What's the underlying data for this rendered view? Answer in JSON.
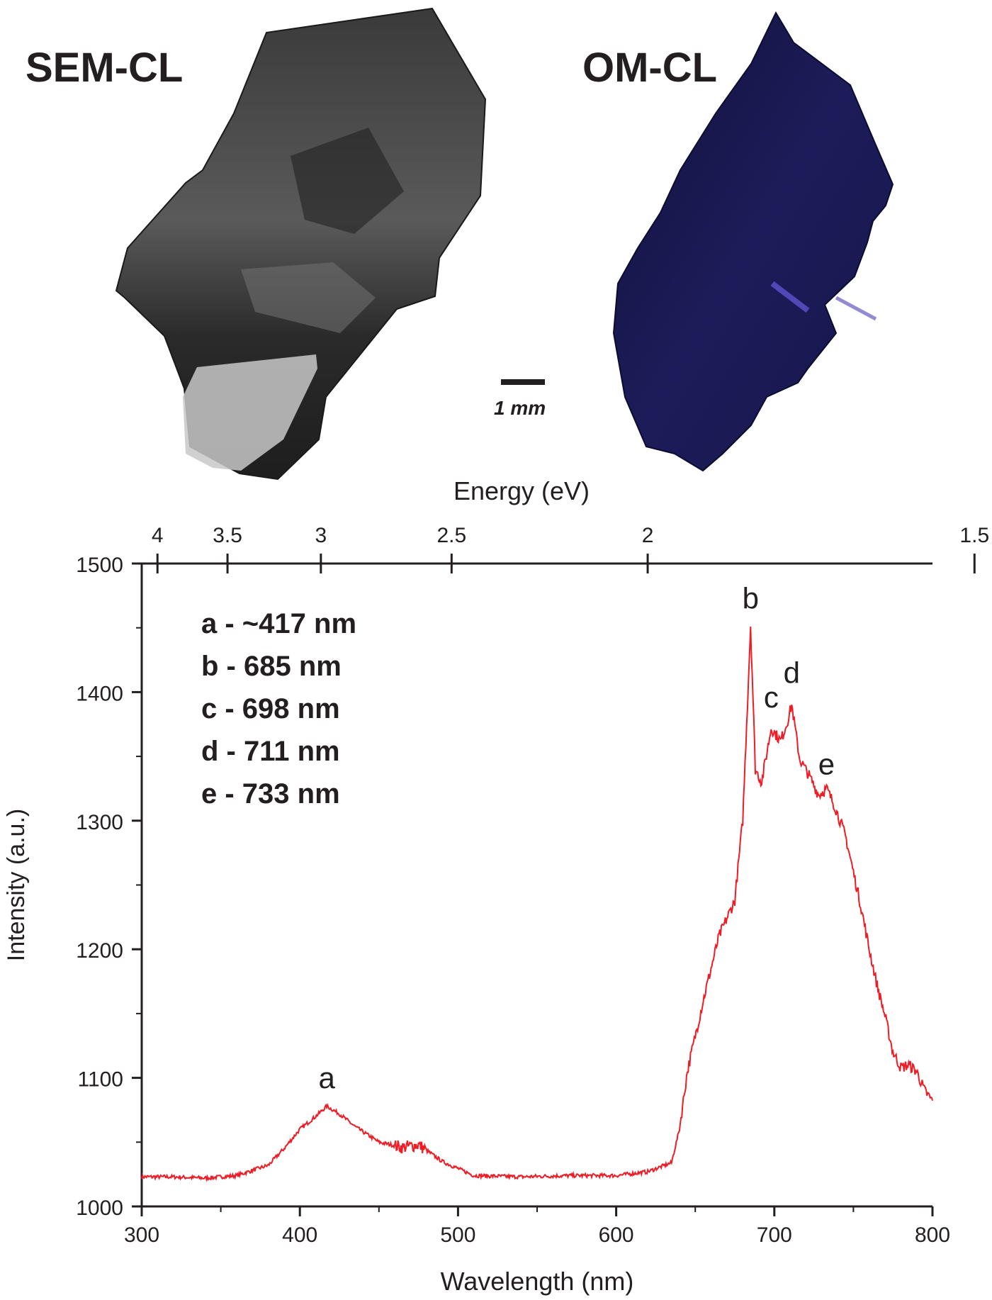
{
  "panels": {
    "left_title": "SEM-CL",
    "right_title": "OM-CL",
    "scale_label": "1 mm"
  },
  "chart_data": {
    "type": "line",
    "xlabel": "Wavelength (nm)",
    "ylabel": "Intensity (a.u.)",
    "top_axis_label": "Energy (eV)",
    "xlim": [
      300,
      800
    ],
    "ylim": [
      1000,
      1500
    ],
    "x_ticks": [
      300,
      400,
      500,
      600,
      700,
      800
    ],
    "y_ticks": [
      1000,
      1100,
      1200,
      1300,
      1400,
      1500
    ],
    "top_ticks": [
      {
        "label": "4",
        "energy": 4.0
      },
      {
        "label": "3.5",
        "energy": 3.5
      },
      {
        "label": "3",
        "energy": 3.0
      },
      {
        "label": "2.5",
        "energy": 2.5
      },
      {
        "label": "2",
        "energy": 2.0
      },
      {
        "label": "1.5",
        "energy": 1.5
      }
    ],
    "series_color": "#ee1c25",
    "series": [
      {
        "name": "",
        "x": [
          300,
          320,
          340,
          360,
          380,
          390,
          400,
          410,
          417,
          425,
          435,
          450,
          465,
          475,
          490,
          510,
          540,
          570,
          600,
          620,
          635,
          640,
          645,
          655,
          665,
          675,
          680,
          682,
          685,
          688,
          692,
          698,
          704,
          708,
          711,
          716,
          722,
          728,
          733,
          738,
          745,
          750,
          755,
          760,
          765,
          770,
          775,
          780,
          785,
          790,
          795,
          800
        ],
        "y": [
          1023,
          1023,
          1022,
          1024,
          1032,
          1045,
          1060,
          1070,
          1078,
          1072,
          1062,
          1050,
          1046,
          1048,
          1035,
          1024,
          1023,
          1024,
          1024,
          1027,
          1034,
          1060,
          1105,
          1160,
          1210,
          1238,
          1300,
          1360,
          1452,
          1340,
          1330,
          1372,
          1362,
          1376,
          1390,
          1348,
          1335,
          1320,
          1325,
          1312,
          1288,
          1260,
          1232,
          1200,
          1172,
          1148,
          1120,
          1108,
          1110,
          1105,
          1090,
          1082
        ]
      }
    ],
    "annotations": [
      {
        "label": "a",
        "x": 417,
        "y": 1092
      },
      {
        "label": "b",
        "x": 685,
        "y": 1465
      },
      {
        "label": "c",
        "x": 698,
        "y": 1388
      },
      {
        "label": "d",
        "x": 711,
        "y": 1407
      },
      {
        "label": "e",
        "x": 733,
        "y": 1336
      }
    ],
    "legend": [
      "a - ~417 nm",
      "b - 685 nm",
      "c - 698 nm",
      "d - 711 nm",
      "e - 733 nm"
    ]
  }
}
